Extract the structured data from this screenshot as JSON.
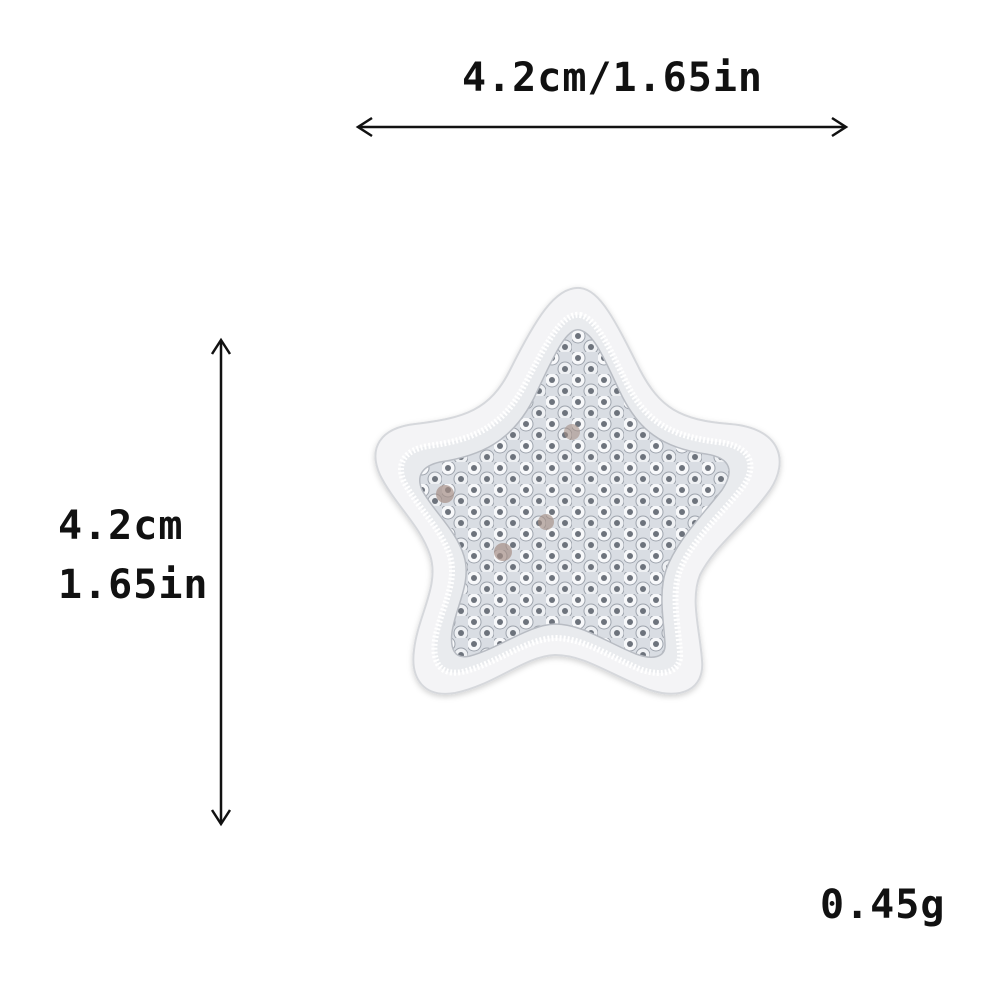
{
  "dimensions": {
    "width_label": "4.2cm/1.65in",
    "height_label_cm": "4.2cm",
    "height_label_in": "1.65in"
  },
  "weight": "0.45g",
  "product": {
    "icon": "star-icon",
    "sequin_color": "#c8ccd3",
    "border_color": "#f4f4f6"
  }
}
